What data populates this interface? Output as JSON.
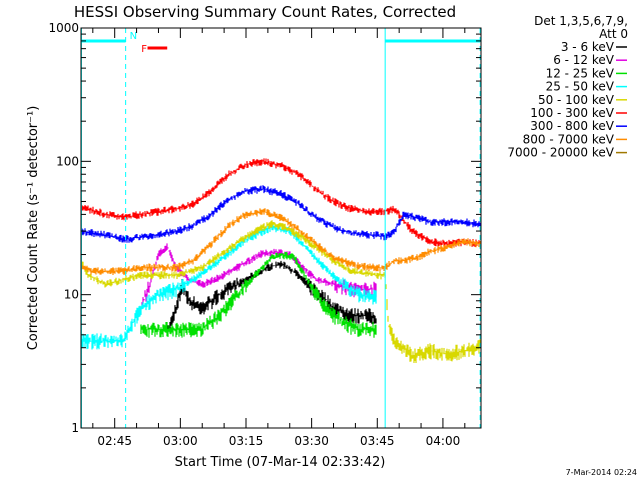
{
  "chart_data": {
    "type": "line",
    "title": "HESSI Observing Summary Count Rates, Corrected",
    "xlabel": "Start Time (07-Mar-14 02:33:42)",
    "ylabel": "Corrected Count Rate (s⁻¹ detector⁻¹)",
    "yscale": "log",
    "ylim": [
      1,
      1000
    ],
    "xlim_minutes": [
      2.3,
      93.7
    ],
    "x_ticks": [
      {
        "minute": 10.0,
        "label": "02:45"
      },
      {
        "minute": 25.0,
        "label": "03:00"
      },
      {
        "minute": 40.0,
        "label": "03:15"
      },
      {
        "minute": 55.0,
        "label": "03:30"
      },
      {
        "minute": 70.0,
        "label": "03:45"
      },
      {
        "minute": 85.0,
        "label": "04:00"
      }
    ],
    "y_ticks": [
      {
        "value": 1,
        "label": "1"
      },
      {
        "value": 10,
        "label": "10"
      },
      {
        "value": 100,
        "label": "100"
      },
      {
        "value": 1000,
        "label": "1000"
      }
    ],
    "legend_header": [
      "Det 1,3,5,6,7,9,",
      "Att 0"
    ],
    "legend_position": "right",
    "series": [
      {
        "name": "3 - 6 keV",
        "color": "#000000",
        "points": [
          [
            22,
            5.0
          ],
          [
            24,
            8
          ],
          [
            25.5,
            12
          ],
          [
            27,
            9
          ],
          [
            30,
            8
          ],
          [
            34,
            10
          ],
          [
            40,
            13
          ],
          [
            45,
            16
          ],
          [
            48,
            17
          ],
          [
            51,
            15
          ],
          [
            54,
            12
          ],
          [
            57,
            10
          ],
          [
            60,
            8
          ],
          [
            64,
            7
          ],
          [
            68,
            7
          ],
          [
            69.8,
            6.5
          ]
        ]
      },
      {
        "name": "6 - 12 keV",
        "color": "#e000e0",
        "points": [
          [
            16,
            8
          ],
          [
            18,
            12
          ],
          [
            20,
            20
          ],
          [
            22,
            23
          ],
          [
            24,
            16
          ],
          [
            27,
            13
          ],
          [
            30,
            12
          ],
          [
            33,
            13
          ],
          [
            38,
            16
          ],
          [
            43,
            20
          ],
          [
            47,
            21
          ],
          [
            50,
            20
          ],
          [
            53,
            16
          ],
          [
            56,
            13
          ],
          [
            60,
            12
          ],
          [
            65,
            11
          ],
          [
            69.8,
            11
          ]
        ]
      },
      {
        "name": "12 - 25 keV",
        "color": "#00e000",
        "points": [
          [
            16,
            5.5
          ],
          [
            30,
            5.5
          ],
          [
            34,
            7
          ],
          [
            38,
            10
          ],
          [
            42,
            14
          ],
          [
            46,
            19
          ],
          [
            48,
            20
          ],
          [
            51,
            19
          ],
          [
            54,
            13
          ],
          [
            57,
            9
          ],
          [
            60,
            7
          ],
          [
            63,
            6
          ],
          [
            66,
            5.5
          ],
          [
            69.8,
            5.5
          ]
        ]
      },
      {
        "name": "25 - 50 keV",
        "color": "#00ffff",
        "points": [
          [
            2.3,
            4.5
          ],
          [
            12,
            4.5
          ],
          [
            16,
            8
          ],
          [
            20,
            10
          ],
          [
            24,
            11
          ],
          [
            28,
            13
          ],
          [
            34,
            18
          ],
          [
            40,
            26
          ],
          [
            46,
            32
          ],
          [
            50,
            30
          ],
          [
            54,
            22
          ],
          [
            58,
            16
          ],
          [
            62,
            12
          ],
          [
            66,
            10
          ],
          [
            69.8,
            9.5
          ]
        ]
      },
      {
        "name": "50 - 100 keV",
        "color": "#d8d800",
        "points": [
          [
            2.3,
            18
          ],
          [
            4,
            14
          ],
          [
            8,
            12
          ],
          [
            12,
            13
          ],
          [
            16,
            14
          ],
          [
            20,
            14
          ],
          [
            24,
            14
          ],
          [
            30,
            16
          ],
          [
            36,
            22
          ],
          [
            42,
            30
          ],
          [
            46,
            34
          ],
          [
            50,
            31
          ],
          [
            55,
            24
          ],
          [
            60,
            18
          ],
          [
            64,
            15
          ],
          [
            69.8,
            14
          ],
          [
            71.8,
            14
          ],
          [
            72.5,
            6
          ],
          [
            74,
            4.5
          ],
          [
            78,
            3.5
          ],
          [
            82,
            3.8
          ],
          [
            86,
            3.6
          ],
          [
            90,
            3.8
          ],
          [
            93.5,
            4.2
          ]
        ]
      },
      {
        "name": "100 - 300 keV",
        "color": "#ff0000",
        "points": [
          [
            2.3,
            45
          ],
          [
            5,
            43
          ],
          [
            8,
            40
          ],
          [
            12,
            38
          ],
          [
            16,
            40
          ],
          [
            20,
            42
          ],
          [
            24,
            44
          ],
          [
            28,
            48
          ],
          [
            32,
            60
          ],
          [
            36,
            80
          ],
          [
            40,
            95
          ],
          [
            44,
            100
          ],
          [
            48,
            93
          ],
          [
            52,
            80
          ],
          [
            56,
            62
          ],
          [
            60,
            50
          ],
          [
            64,
            44
          ],
          [
            68,
            42
          ],
          [
            69.8,
            42
          ],
          [
            71.8,
            42
          ],
          [
            74,
            44
          ],
          [
            76,
            36
          ],
          [
            78,
            30
          ],
          [
            82,
            25
          ],
          [
            86,
            24
          ],
          [
            90,
            25
          ],
          [
            93.5,
            24
          ]
        ]
      },
      {
        "name": "300 - 800 keV",
        "color": "#0000ff",
        "points": [
          [
            2.3,
            30
          ],
          [
            5,
            29
          ],
          [
            8,
            28
          ],
          [
            12,
            26
          ],
          [
            16,
            27
          ],
          [
            20,
            28
          ],
          [
            24,
            30
          ],
          [
            28,
            33
          ],
          [
            32,
            40
          ],
          [
            36,
            52
          ],
          [
            40,
            60
          ],
          [
            44,
            62
          ],
          [
            48,
            57
          ],
          [
            52,
            48
          ],
          [
            56,
            38
          ],
          [
            60,
            32
          ],
          [
            64,
            29
          ],
          [
            68,
            28
          ],
          [
            69.8,
            28
          ],
          [
            71.8,
            27
          ],
          [
            74,
            30
          ],
          [
            76,
            40
          ],
          [
            79,
            38
          ],
          [
            82,
            35
          ],
          [
            86,
            35
          ],
          [
            90,
            35
          ],
          [
            93.5,
            34
          ]
        ]
      },
      {
        "name": "800 - 7000 keV",
        "color": "#ff8c00",
        "points": [
          [
            2.3,
            16
          ],
          [
            5,
            15
          ],
          [
            8,
            15
          ],
          [
            12,
            15
          ],
          [
            16,
            16
          ],
          [
            20,
            16
          ],
          [
            24,
            16
          ],
          [
            28,
            18
          ],
          [
            32,
            24
          ],
          [
            36,
            33
          ],
          [
            40,
            40
          ],
          [
            44,
            42
          ],
          [
            48,
            38
          ],
          [
            52,
            31
          ],
          [
            56,
            24
          ],
          [
            60,
            19
          ],
          [
            64,
            17
          ],
          [
            68,
            16
          ],
          [
            69.8,
            16
          ],
          [
            71.8,
            16
          ],
          [
            74,
            18
          ],
          [
            76,
            18
          ],
          [
            79,
            19
          ],
          [
            82,
            21
          ],
          [
            86,
            23
          ],
          [
            90,
            25
          ],
          [
            93.5,
            24
          ]
        ]
      },
      {
        "name": "7000 - 20000 keV",
        "color": "#a07800",
        "points": []
      }
    ],
    "annotations": [
      {
        "label": "N",
        "kind": "flag bar",
        "color": "#00ffff",
        "segments": [
          [
            2.3,
            12.5
          ],
          [
            71.8,
            93.5
          ]
        ]
      },
      {
        "label": "F",
        "kind": "flag bar",
        "color": "#ff0000",
        "segments": [
          [
            17.5,
            22.0
          ]
        ]
      }
    ],
    "vertical_lines": [
      {
        "minute": 2.4,
        "style": "solid",
        "color": "#00ffff"
      },
      {
        "minute": 12.5,
        "style": "dashed",
        "color": "#00ffff"
      },
      {
        "minute": 71.8,
        "style": "solid",
        "color": "#00ffff"
      },
      {
        "minute": 93.5,
        "style": "dashed",
        "color": "#00ffff"
      }
    ],
    "grid": false
  },
  "footer": {
    "timestamp": "7-Mar-2014 02:24"
  }
}
